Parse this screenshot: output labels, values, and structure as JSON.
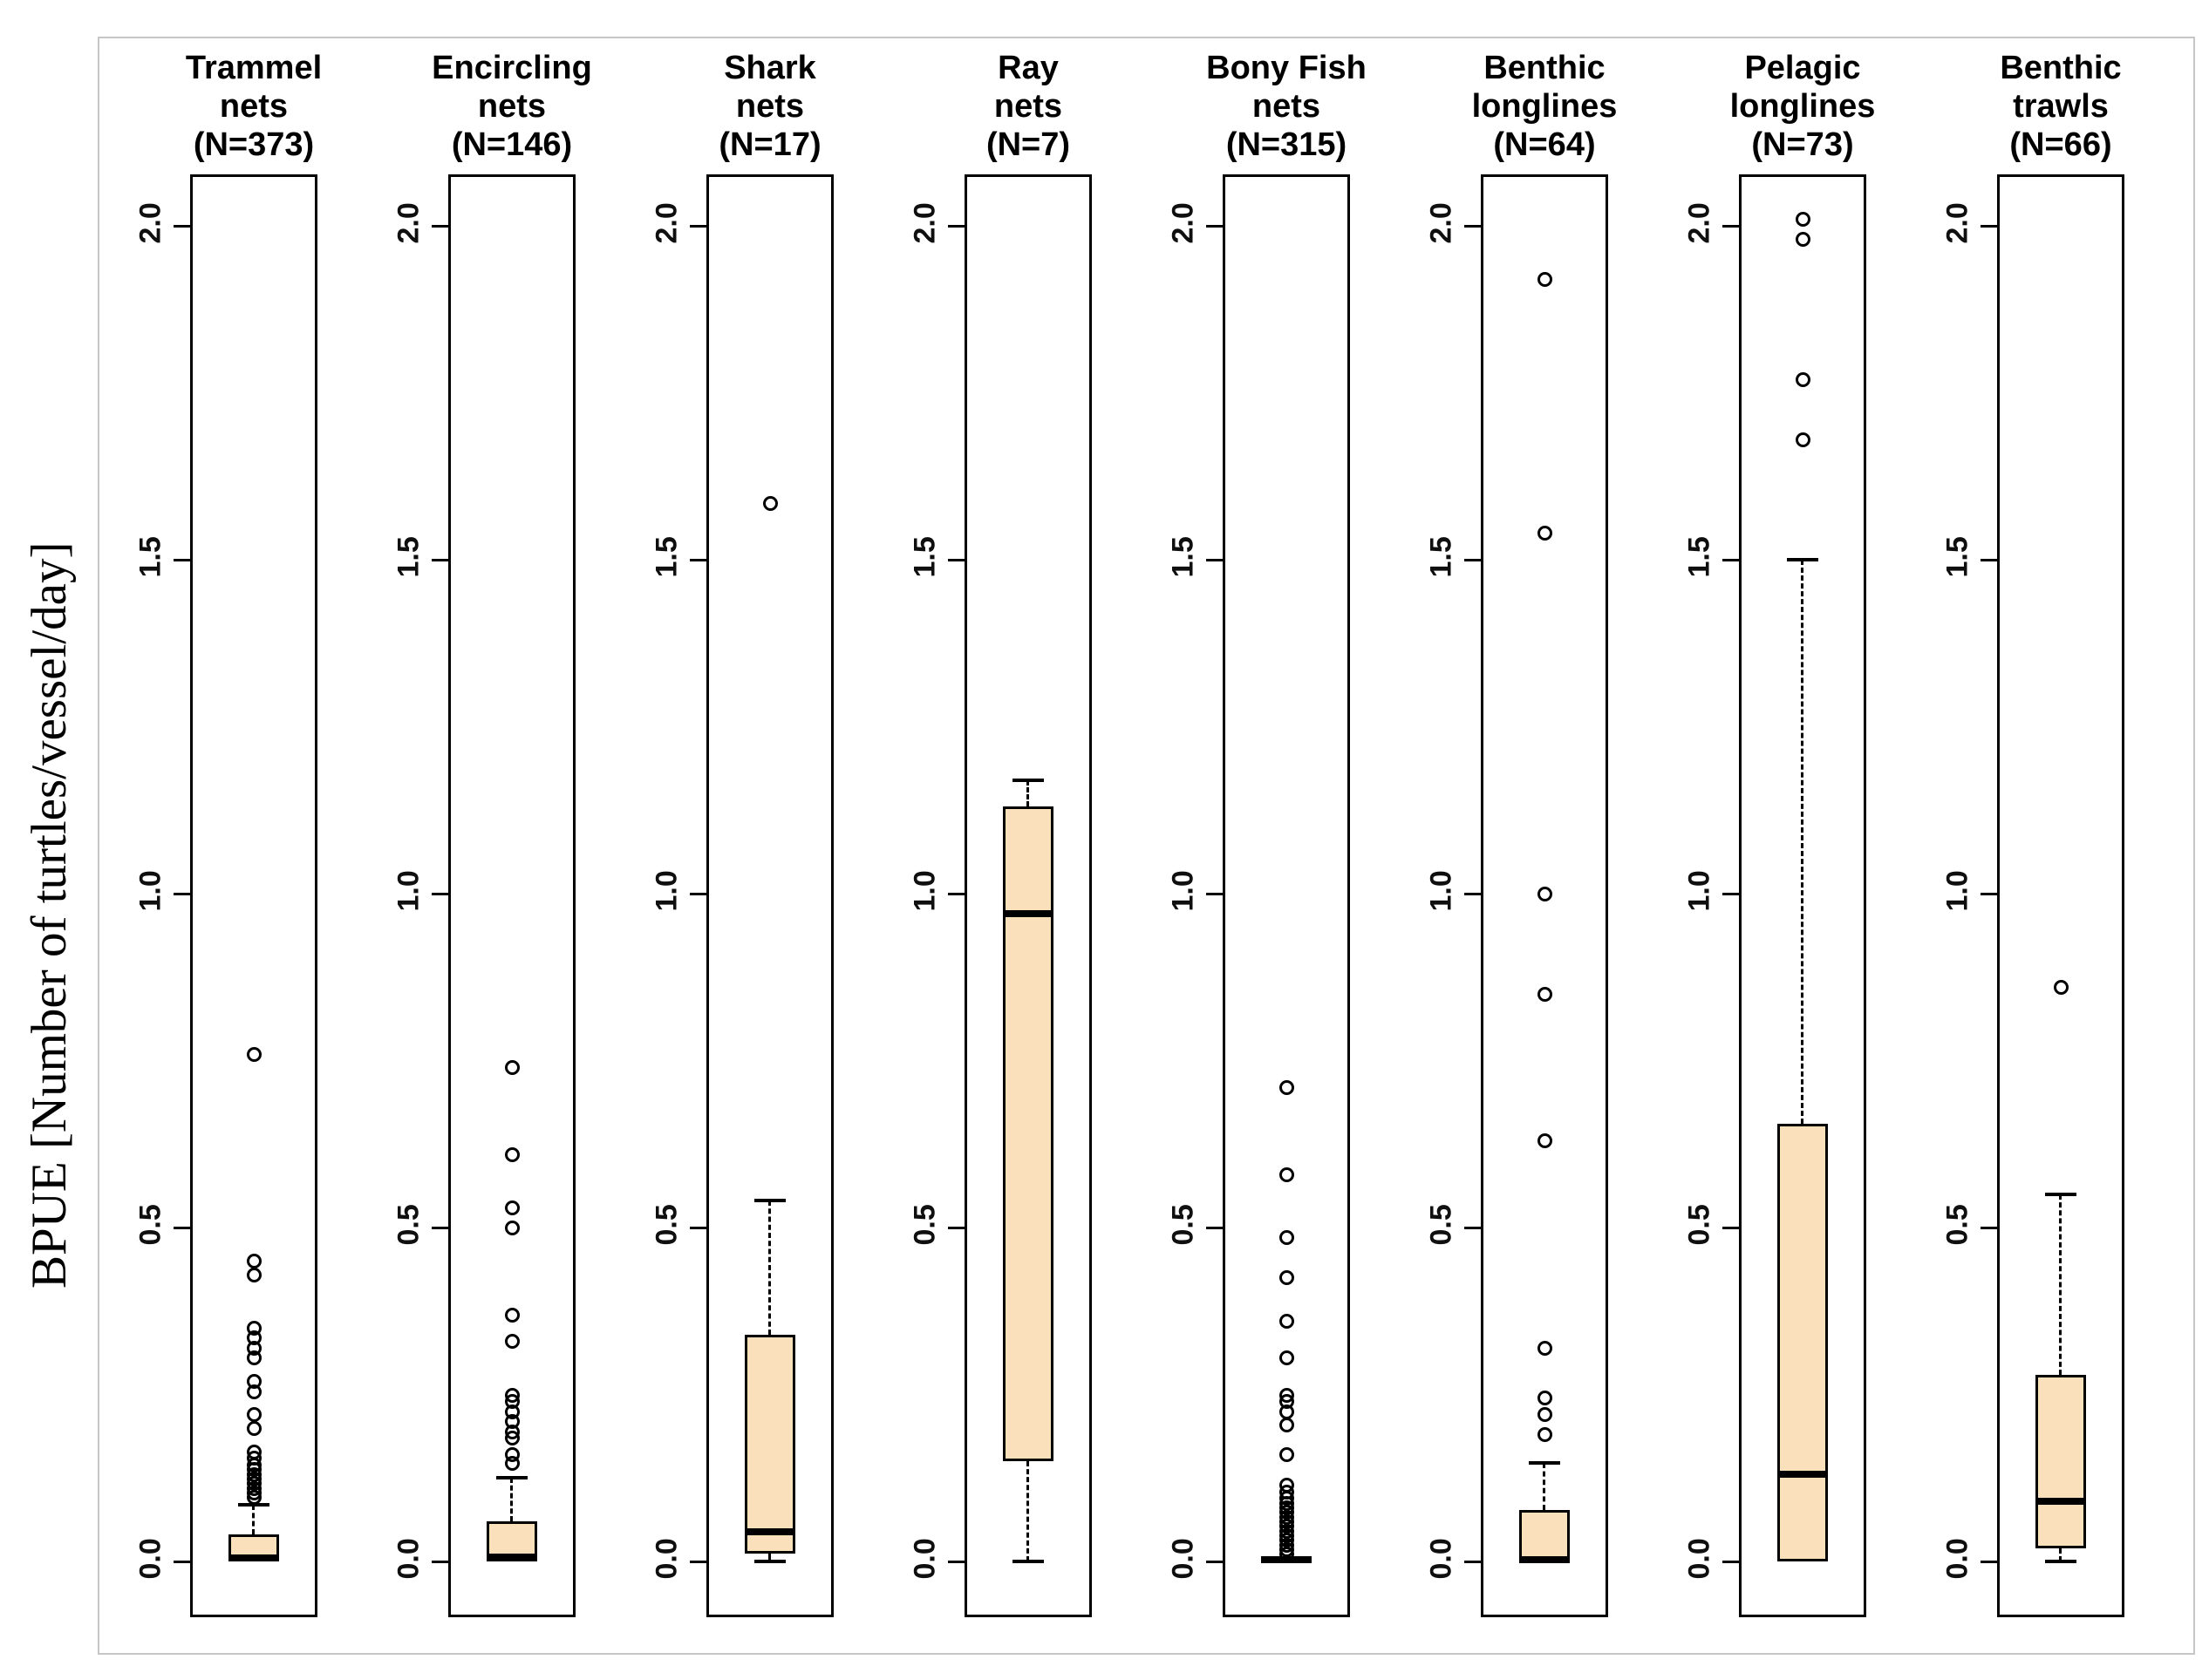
{
  "figure": {
    "y_axis_label": "BPUE [Number of turtles/vessel/day]",
    "y_tick_labels": [
      "2.0",
      "1.5",
      "1.0",
      "0.5",
      "0.0"
    ],
    "y_tick_values": [
      2.0,
      1.5,
      1.0,
      0.5,
      0.0
    ],
    "box_fill_color": "#fae1bc",
    "line_color": "#000000"
  },
  "chart_data": {
    "type": "boxplot",
    "title": "",
    "xlabel": "",
    "ylabel": "BPUE [Number of turtles/vessel/day]",
    "ylim": [
      -0.1,
      2.07
    ],
    "y_ticks": [
      0.0,
      0.5,
      1.0,
      1.5,
      2.0
    ],
    "grid": false,
    "categories": [
      "Trammel nets",
      "Encircling nets",
      "Shark nets",
      "Ray nets",
      "Bony Fish nets",
      "Benthic longlines",
      "Pelagic longlines",
      "Benthic trawls"
    ],
    "sample_sizes": [
      373,
      146,
      17,
      7,
      315,
      64,
      73,
      66
    ],
    "panels": [
      {
        "title_lines": [
          "Trammel",
          "nets",
          "(N=373)"
        ],
        "category": "Trammel nets",
        "n": 373,
        "stats": {
          "whisker_low": 0.0,
          "q1": 0.0,
          "median": 0.005,
          "q3": 0.04,
          "whisker_high": 0.085
        },
        "outliers": [
          0.76,
          0.45,
          0.43,
          0.35,
          0.335,
          0.32,
          0.305,
          0.27,
          0.255,
          0.22,
          0.2,
          0.165,
          0.155,
          0.145,
          0.138,
          0.131,
          0.124,
          0.117,
          0.11,
          0.103,
          0.097
        ]
      },
      {
        "title_lines": [
          "Encircling",
          "nets",
          "(N=146)"
        ],
        "category": "Encircling nets",
        "n": 146,
        "stats": {
          "whisker_low": 0.0,
          "q1": 0.0,
          "median": 0.007,
          "q3": 0.06,
          "whisker_high": 0.125
        },
        "outliers": [
          0.74,
          0.61,
          0.53,
          0.5,
          0.37,
          0.33,
          0.25,
          0.24,
          0.225,
          0.21,
          0.195,
          0.185,
          0.16,
          0.147
        ]
      },
      {
        "title_lines": [
          "Shark",
          "nets",
          "(N=17)"
        ],
        "category": "Shark nets",
        "n": 17,
        "stats": {
          "whisker_low": 0.0,
          "q1": 0.012,
          "median": 0.045,
          "q3": 0.34,
          "whisker_high": 0.54
        },
        "outliers": [
          1.585
        ]
      },
      {
        "title_lines": [
          "Ray",
          "nets",
          "(N=7)"
        ],
        "category": "Ray nets",
        "n": 7,
        "stats": {
          "whisker_low": 0.0,
          "q1": 0.15,
          "median": 0.97,
          "q3": 1.13,
          "whisker_high": 1.17
        },
        "outliers": []
      },
      {
        "title_lines": [
          "Bony Fish",
          "nets",
          "(N=315)"
        ],
        "category": "Bony Fish nets",
        "n": 315,
        "stats": {
          "whisker_low": 0.0,
          "q1": 0.0,
          "median": 0.002,
          "q3": 0.006,
          "whisker_high": 0.006
        },
        "outliers": [
          0.71,
          0.58,
          0.485,
          0.425,
          0.36,
          0.305,
          0.25,
          0.24,
          0.225,
          0.205,
          0.16,
          0.115,
          0.105,
          0.095,
          0.088,
          0.081,
          0.074,
          0.067,
          0.06,
          0.053,
          0.046,
          0.039,
          0.032,
          0.025,
          0.018,
          0.012
        ]
      },
      {
        "title_lines": [
          "Benthic",
          "longlines",
          "(N=64)"
        ],
        "category": "Benthic longlines",
        "n": 64,
        "stats": {
          "whisker_low": 0.0,
          "q1": 0.0,
          "median": 0.003,
          "q3": 0.077,
          "whisker_high": 0.148
        },
        "outliers": [
          1.92,
          1.54,
          1.0,
          0.85,
          0.63,
          0.32,
          0.245,
          0.22,
          0.19
        ]
      },
      {
        "title_lines": [
          "Pelagic",
          "longlines",
          "(N=73)"
        ],
        "category": "Pelagic longlines",
        "n": 73,
        "stats": {
          "whisker_low": 0.0,
          "q1": 0.0,
          "median": 0.13,
          "q3": 0.655,
          "whisker_high": 1.5
        },
        "outliers": [
          2.01,
          1.98,
          1.77,
          1.68
        ]
      },
      {
        "title_lines": [
          "Benthic",
          "trawls",
          "(N=66)"
        ],
        "category": "Benthic trawls",
        "n": 66,
        "stats": {
          "whisker_low": 0.0,
          "q1": 0.02,
          "median": 0.09,
          "q3": 0.28,
          "whisker_high": 0.55
        },
        "outliers": [
          0.86
        ]
      }
    ]
  }
}
